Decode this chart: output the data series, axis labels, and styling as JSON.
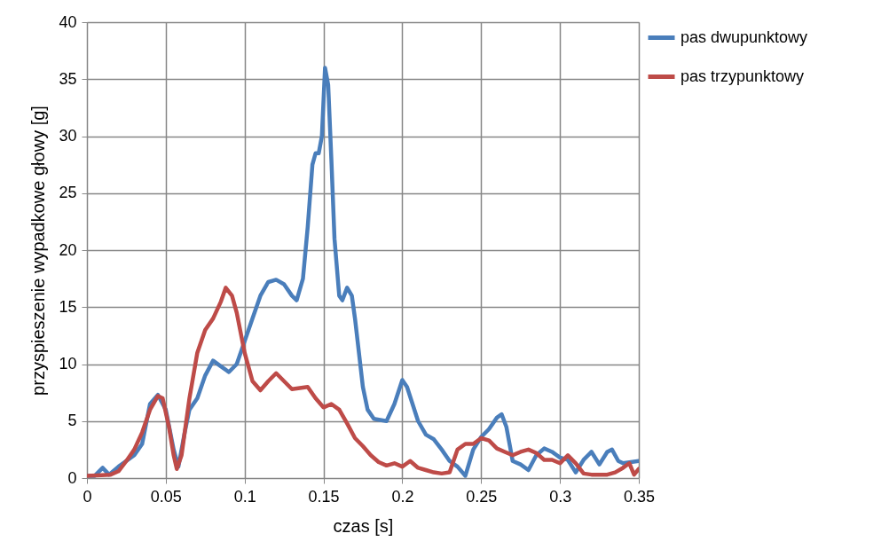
{
  "chart_data": {
    "type": "line",
    "xlabel": "czas [s]",
    "ylabel": "przyspieszenie wypadkowe głowy [g]",
    "xlim": [
      0,
      0.35
    ],
    "xticks": [
      0,
      0.05,
      0.1,
      0.15,
      0.2,
      0.25,
      0.3,
      0.35
    ],
    "ylim": [
      0,
      40
    ],
    "yticks": [
      0,
      5,
      10,
      15,
      20,
      25,
      30,
      35,
      40
    ],
    "grid": true,
    "legend": "top right",
    "marker": "none",
    "line_style": "solid",
    "series": [
      {
        "name": "pas dwupunktowy",
        "color": "#4a7ebb",
        "x": [
          0,
          0.005,
          0.01,
          0.014,
          0.02,
          0.03,
          0.035,
          0.04,
          0.045,
          0.05,
          0.055,
          0.058,
          0.062,
          0.065,
          0.07,
          0.075,
          0.08,
          0.085,
          0.09,
          0.095,
          0.1,
          0.105,
          0.11,
          0.115,
          0.12,
          0.125,
          0.13,
          0.133,
          0.137,
          0.14,
          0.143,
          0.145,
          0.147,
          0.149,
          0.151,
          0.153,
          0.155,
          0.157,
          0.16,
          0.162,
          0.165,
          0.168,
          0.17,
          0.175,
          0.178,
          0.182,
          0.19,
          0.195,
          0.2,
          0.203,
          0.21,
          0.215,
          0.22,
          0.225,
          0.23,
          0.235,
          0.24,
          0.245,
          0.25,
          0.255,
          0.26,
          0.263,
          0.266,
          0.27,
          0.275,
          0.28,
          0.285,
          0.29,
          0.295,
          0.3,
          0.305,
          0.31,
          0.315,
          0.32,
          0.325,
          0.33,
          0.333,
          0.337,
          0.34,
          0.345,
          0.35
        ],
        "values": [
          0.2,
          0.2,
          0.9,
          0.3,
          1.0,
          2.0,
          3.0,
          6.5,
          7.3,
          6.0,
          2.5,
          1.0,
          4.0,
          6.0,
          7.0,
          9.0,
          10.3,
          9.8,
          9.3,
          10.0,
          12.0,
          14.0,
          16.0,
          17.2,
          17.4,
          17.0,
          16.0,
          15.6,
          17.5,
          22,
          27.5,
          28.5,
          28.5,
          30,
          36,
          34.5,
          28,
          21,
          16,
          15.6,
          16.7,
          16.0,
          14,
          8,
          6,
          5.2,
          5.0,
          6.5,
          8.6,
          8.0,
          5,
          3.8,
          3.4,
          2.5,
          1.5,
          1.0,
          0.2,
          2.5,
          3.6,
          4.3,
          5.3,
          5.6,
          4.5,
          1.5,
          1.2,
          0.7,
          2.0,
          2.6,
          2.3,
          1.8,
          1.6,
          0.5,
          1.6,
          2.3,
          1.2,
          2.3,
          2.5,
          1.5,
          1.3,
          1.4,
          1.5
        ]
      },
      {
        "name": "pas trzypunktowy",
        "color": "#be4b48",
        "x": [
          0,
          0.015,
          0.02,
          0.025,
          0.03,
          0.035,
          0.04,
          0.045,
          0.048,
          0.052,
          0.055,
          0.057,
          0.06,
          0.065,
          0.07,
          0.075,
          0.08,
          0.085,
          0.088,
          0.092,
          0.095,
          0.1,
          0.105,
          0.11,
          0.115,
          0.12,
          0.125,
          0.13,
          0.135,
          0.14,
          0.145,
          0.15,
          0.155,
          0.16,
          0.165,
          0.17,
          0.175,
          0.18,
          0.185,
          0.19,
          0.195,
          0.2,
          0.205,
          0.21,
          0.215,
          0.22,
          0.225,
          0.23,
          0.235,
          0.24,
          0.245,
          0.25,
          0.255,
          0.26,
          0.265,
          0.27,
          0.275,
          0.28,
          0.285,
          0.29,
          0.295,
          0.3,
          0.305,
          0.31,
          0.315,
          0.32,
          0.33,
          0.335,
          0.34,
          0.344,
          0.347,
          0.35
        ],
        "values": [
          0.2,
          0.3,
          0.6,
          1.5,
          2.5,
          4.0,
          6.0,
          7.2,
          7.0,
          4.5,
          2.0,
          0.8,
          2,
          7,
          11,
          13.0,
          14.0,
          15.5,
          16.7,
          16.0,
          14.5,
          11,
          8.5,
          7.7,
          8.5,
          9.2,
          8.5,
          7.8,
          7.9,
          8.0,
          7.0,
          6.2,
          6.5,
          6.0,
          4.8,
          3.5,
          2.8,
          2.0,
          1.4,
          1.1,
          1.3,
          1.0,
          1.5,
          0.9,
          0.7,
          0.5,
          0.4,
          0.5,
          2.5,
          3.0,
          3.0,
          3.5,
          3.3,
          2.6,
          2.3,
          2.0,
          2.3,
          2.5,
          2.2,
          1.6,
          1.6,
          1.3,
          2.0,
          1.3,
          0.4,
          0.3,
          0.3,
          0.5,
          0.9,
          1.3,
          0.3,
          0.8
        ]
      }
    ]
  }
}
